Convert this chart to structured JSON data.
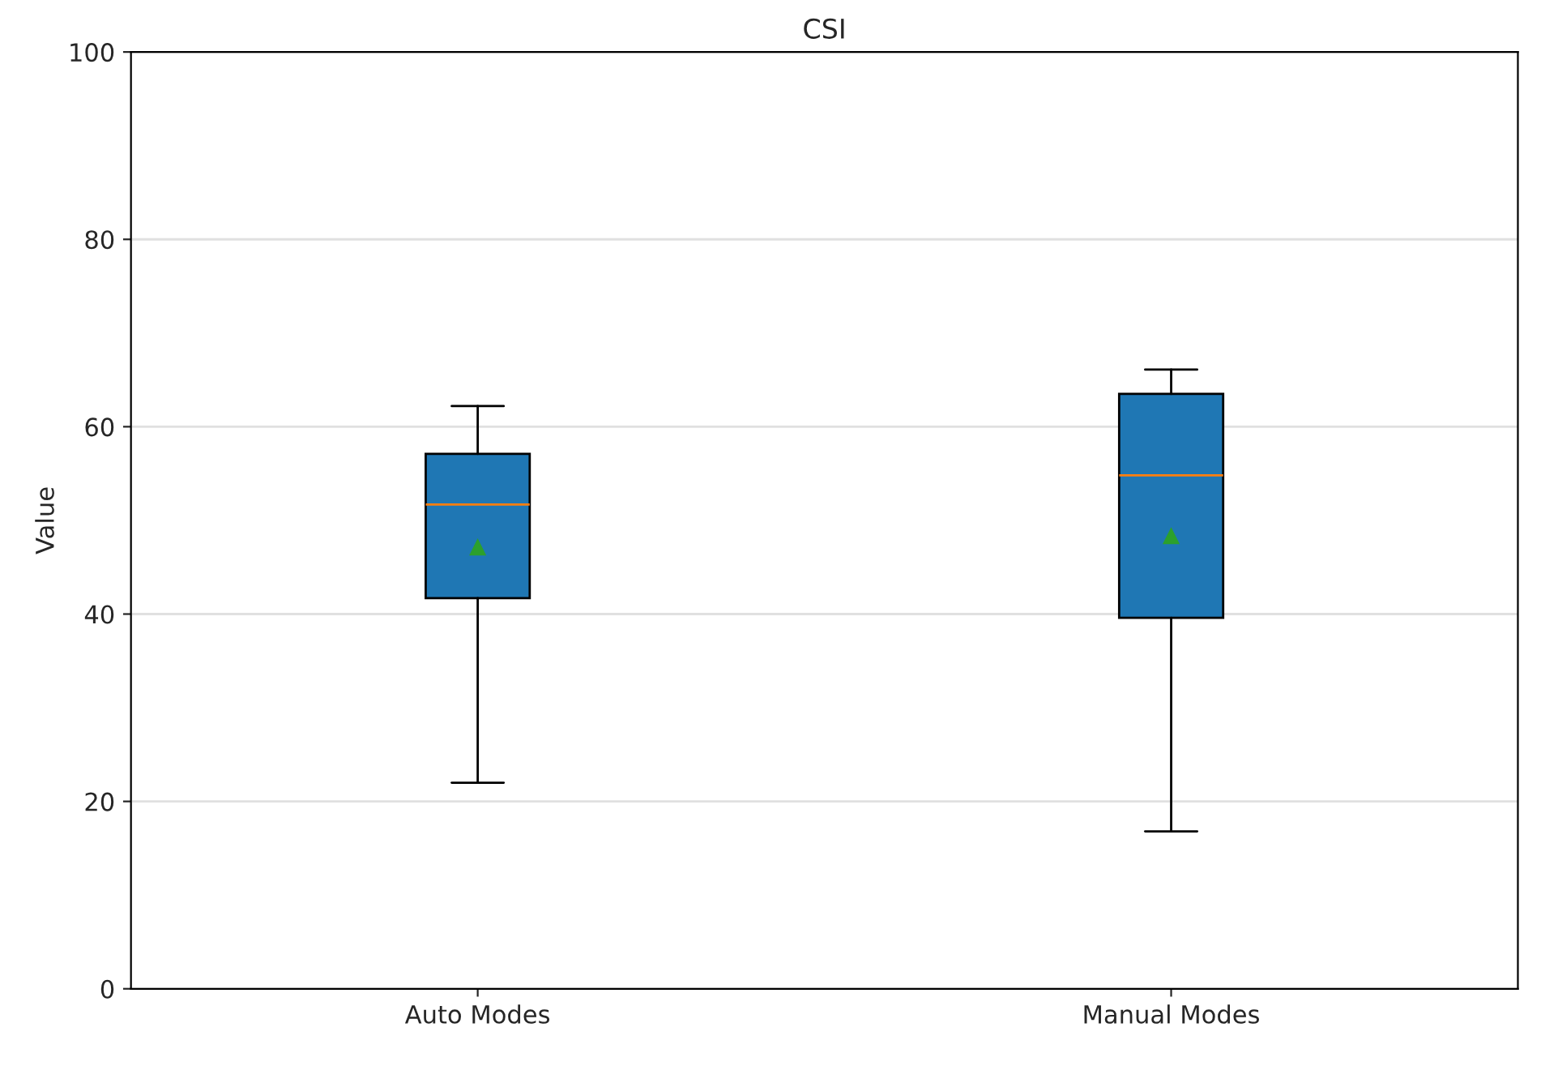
{
  "chart_data": {
    "type": "box",
    "title": "CSI",
    "ylabel": "Value",
    "categories": [
      "Auto Modes",
      "Manual Modes"
    ],
    "boxes": [
      {
        "low": 22,
        "q1": 41.7,
        "median": 51.7,
        "q3": 57.1,
        "high": 62.2,
        "mean": 47.1
      },
      {
        "low": 16.8,
        "q1": 39.6,
        "median": 54.8,
        "q3": 63.5,
        "high": 66.1,
        "mean": 48.3
      }
    ],
    "color": "#1f77b4",
    "ylim": [
      0,
      100
    ],
    "yticks": [
      0,
      20,
      40,
      60,
      80,
      100
    ],
    "grid": "y"
  }
}
